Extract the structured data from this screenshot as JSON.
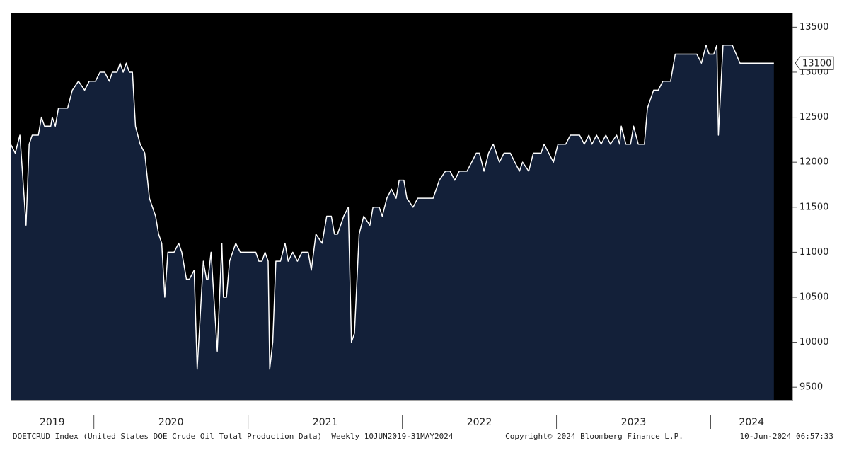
{
  "chart_data": {
    "type": "area",
    "x": [
      2019.46,
      2019.49,
      2019.52,
      2019.56,
      2019.58,
      2019.6,
      2019.64,
      2019.66,
      2019.68,
      2019.72,
      2019.73,
      2019.75,
      2019.77,
      2019.83,
      2019.86,
      2019.9,
      2019.94,
      2019.97,
      2020.01,
      2020.04,
      2020.07,
      2020.1,
      2020.12,
      2020.15,
      2020.17,
      2020.19,
      2020.21,
      2020.23,
      2020.25,
      2020.27,
      2020.3,
      2020.33,
      2020.36,
      2020.4,
      2020.42,
      2020.44,
      2020.46,
      2020.48,
      2020.52,
      2020.55,
      2020.57,
      2020.6,
      2020.62,
      2020.65,
      2020.67,
      2020.71,
      2020.73,
      2020.74,
      2020.76,
      2020.8,
      2020.83,
      2020.84,
      2020.86,
      2020.88,
      2020.92,
      2020.95,
      2021.05,
      2021.07,
      2021.09,
      2021.11,
      2021.13,
      2021.14,
      2021.16,
      2021.18,
      2021.21,
      2021.24,
      2021.26,
      2021.29,
      2021.32,
      2021.35,
      2021.39,
      2021.41,
      2021.44,
      2021.48,
      2021.51,
      2021.54,
      2021.56,
      2021.58,
      2021.62,
      2021.65,
      2021.67,
      2021.69,
      2021.72,
      2021.75,
      2021.79,
      2021.81,
      2021.85,
      2021.87,
      2021.9,
      2021.93,
      2021.96,
      2021.98,
      2022.01,
      2022.03,
      2022.07,
      2022.1,
      2022.2,
      2022.24,
      2022.28,
      2022.31,
      2022.34,
      2022.37,
      2022.42,
      2022.45,
      2022.48,
      2022.5,
      2022.53,
      2022.56,
      2022.59,
      2022.63,
      2022.66,
      2022.7,
      2022.73,
      2022.76,
      2022.78,
      2022.82,
      2022.85,
      2022.9,
      2022.92,
      2022.95,
      2022.98,
      2023.01,
      2023.06,
      2023.09,
      2023.15,
      2023.18,
      2023.21,
      2023.23,
      2023.26,
      2023.29,
      2023.32,
      2023.35,
      2023.39,
      2023.41,
      2023.42,
      2023.45,
      2023.48,
      2023.5,
      2023.53,
      2023.57,
      2023.59,
      2023.63,
      2023.66,
      2023.69,
      2023.74,
      2023.77,
      2023.91,
      2023.94,
      2023.97,
      2023.99,
      2024.02,
      2024.04,
      2024.05,
      2024.08,
      2024.14,
      2024.19,
      2024.41
    ],
    "values": [
      12200,
      12100,
      12300,
      11300,
      12200,
      12300,
      12300,
      12500,
      12400,
      12400,
      12500,
      12400,
      12600,
      12600,
      12800,
      12900,
      12800,
      12900,
      12900,
      13000,
      13000,
      12900,
      13000,
      13000,
      13100,
      13000,
      13100,
      13000,
      13000,
      12400,
      12200,
      12100,
      11600,
      11400,
      11200,
      11100,
      10500,
      11000,
      11000,
      11100,
      11000,
      10700,
      10700,
      10800,
      9700,
      10900,
      10700,
      10700,
      11000,
      9900,
      11100,
      10500,
      10500,
      10900,
      11100,
      11000,
      11000,
      10900,
      10900,
      11000,
      10900,
      9700,
      10000,
      10900,
      10900,
      11100,
      10900,
      11000,
      10900,
      11000,
      11000,
      10800,
      11200,
      11100,
      11400,
      11400,
      11200,
      11200,
      11400,
      11500,
      10000,
      10100,
      11200,
      11400,
      11300,
      11500,
      11500,
      11400,
      11600,
      11700,
      11600,
      11800,
      11800,
      11600,
      11500,
      11600,
      11600,
      11800,
      11900,
      11900,
      11800,
      11900,
      11900,
      12000,
      12100,
      12100,
      11900,
      12100,
      12200,
      12000,
      12100,
      12100,
      12000,
      11900,
      12000,
      11900,
      12100,
      12100,
      12200,
      12100,
      12000,
      12200,
      12200,
      12300,
      12300,
      12200,
      12300,
      12200,
      12300,
      12200,
      12300,
      12200,
      12300,
      12200,
      12400,
      12200,
      12200,
      12400,
      12200,
      12200,
      12600,
      12800,
      12800,
      12900,
      12900,
      13200,
      13200,
      13100,
      13300,
      13200,
      13200,
      13300,
      12300,
      13300,
      13300,
      13100,
      13100
    ],
    "color": "#132039",
    "line_color": "#ffffff",
    "xlim": [
      2019.46,
      2024.53
    ],
    "xticks": [
      {
        "value": 2019,
        "label": "2019"
      },
      {
        "value": 2020,
        "label": "2020"
      },
      {
        "value": 2021,
        "label": "2021"
      },
      {
        "value": 2022,
        "label": "2022"
      },
      {
        "value": 2023,
        "label": "2023"
      },
      {
        "value": 2024,
        "label": "2024"
      }
    ],
    "ylim": [
      9360,
      13660
    ],
    "yticks": [
      9500,
      10000,
      10500,
      11000,
      11500,
      12000,
      12500,
      13000,
      13500
    ],
    "footer": {
      "description": "DOETCRUD Index (United States DOE Crude Oil Total Production Data)  Weekly 10JUN2019-31MAY2024",
      "copyright": "Copyright© 2024 Bloomberg Finance L.P.",
      "timestamp": "10-Jun-2024 06:57:33"
    }
  }
}
